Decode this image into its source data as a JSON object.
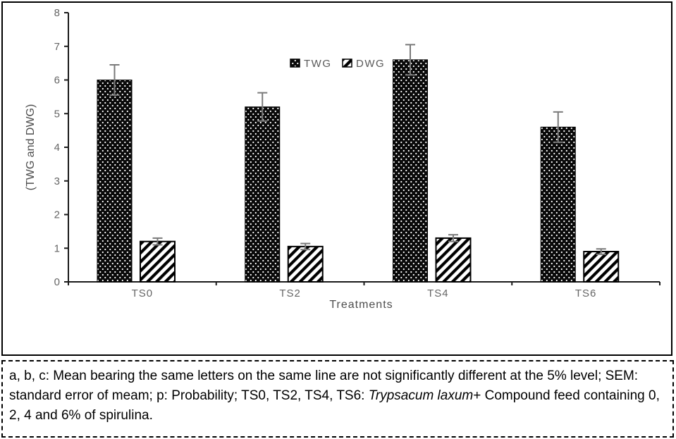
{
  "chart_data": {
    "type": "bar",
    "categories": [
      "TS0",
      "TS2",
      "TS4",
      "TS6"
    ],
    "series": [
      {
        "name": "TWG",
        "pattern": "black-dotted",
        "values": [
          6.0,
          5.2,
          6.6,
          4.6
        ],
        "errors": [
          0.45,
          0.42,
          0.45,
          0.45
        ]
      },
      {
        "name": "DWG",
        "pattern": "diagonal-stripes",
        "values": [
          1.2,
          1.05,
          1.3,
          0.9
        ],
        "errors": [
          0.1,
          0.09,
          0.1,
          0.08
        ]
      }
    ],
    "title": "",
    "xlabel": "Treatments",
    "ylabel": "(TWG and DWG)",
    "ylim": [
      0,
      8
    ],
    "ytick_step": 1,
    "grid": false,
    "legend": {
      "position": "top-center",
      "entries": [
        "TWG",
        "DWG"
      ]
    }
  },
  "caption": {
    "before_italic": "a, b, c: Mean bearing the same letters on the same line are not significantly different at the 5% level; SEM: standard error of meam; p: Probability; TS0, TS2, TS4, TS6: ",
    "italic": "Trypsacum laxum",
    "after_italic": "+ Compound feed containing 0, 2, 4 and 6% of spirulina."
  },
  "colors": {
    "axis": "#1a1a1a",
    "tick_label": "#666666",
    "axis_title": "#4d4d4d",
    "legend_text": "#595959",
    "error_bar": "#7a7a7a",
    "bar_black": "#0a0a0a",
    "background": "#ffffff",
    "frame_border": "#000000"
  }
}
